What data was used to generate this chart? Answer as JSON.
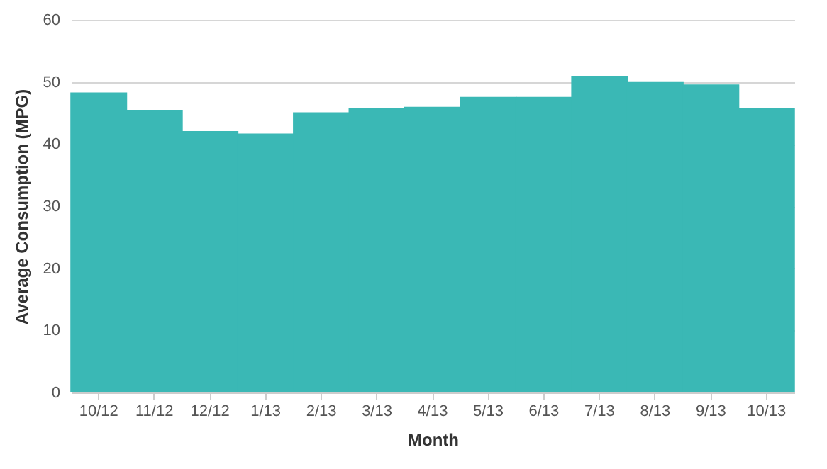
{
  "chart_data": {
    "type": "bar",
    "xlabel": "Month",
    "ylabel": "Average Consumption (MPG)",
    "categories": [
      "10/12",
      "11/12",
      "12/12",
      "1/13",
      "2/13",
      "3/13",
      "4/13",
      "5/13",
      "6/13",
      "7/13",
      "8/13",
      "9/13",
      "10/13"
    ],
    "values": [
      48.3,
      45.5,
      42.1,
      41.7,
      45.1,
      45.8,
      46.0,
      47.6,
      47.6,
      51.0,
      50.0,
      49.6,
      45.8
    ],
    "color": "#3ab8b5",
    "ylim": [
      0,
      60
    ],
    "yticks": [
      0,
      10,
      20,
      30,
      40,
      50,
      60
    ],
    "grid": "y"
  }
}
